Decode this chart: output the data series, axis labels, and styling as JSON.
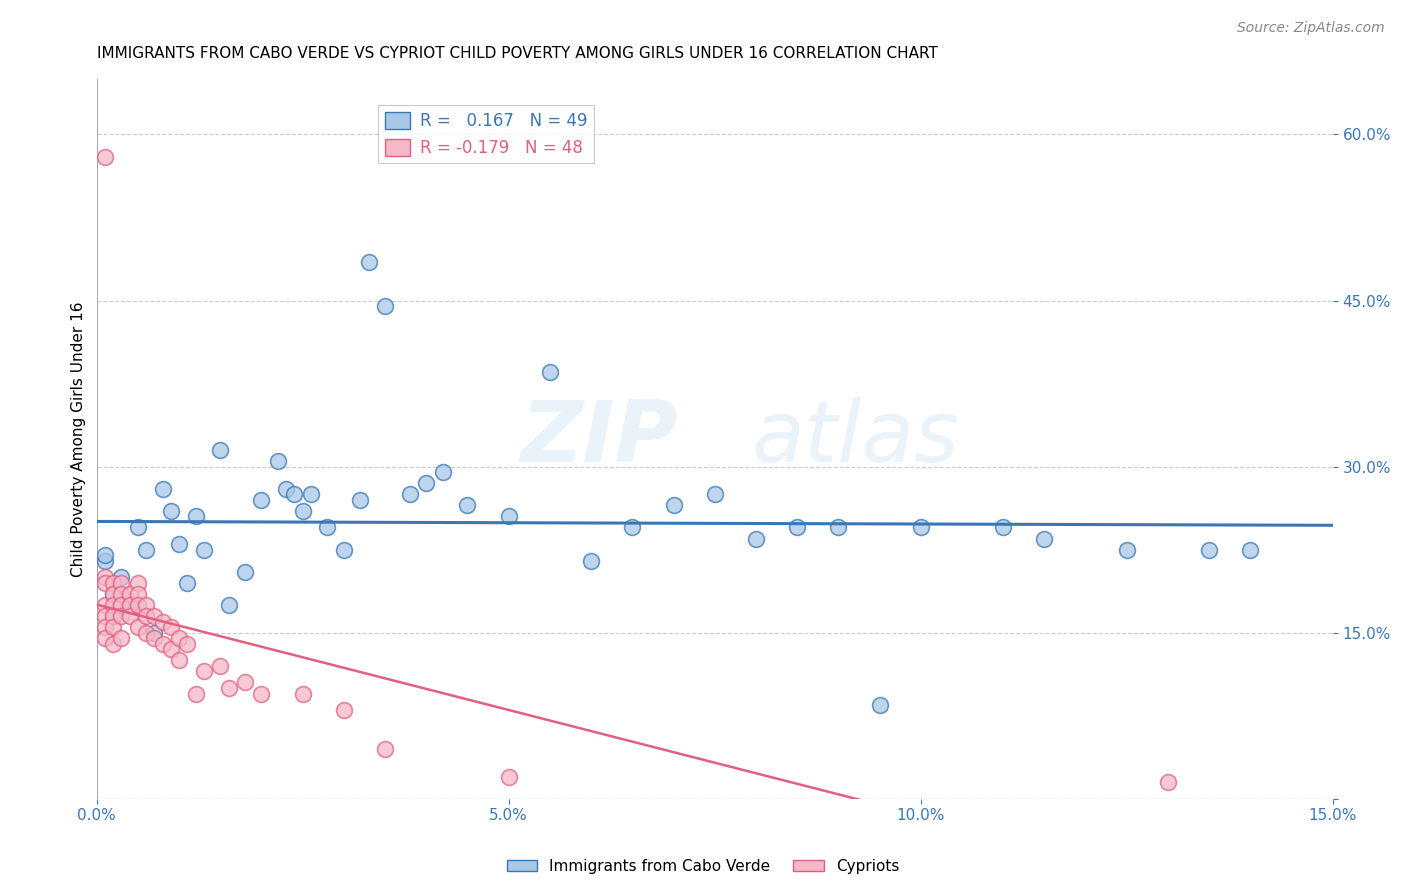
{
  "title": "IMMIGRANTS FROM CABO VERDE VS CYPRIOT CHILD POVERTY AMONG GIRLS UNDER 16 CORRELATION CHART",
  "source": "Source: ZipAtlas.com",
  "ylabel": "Child Poverty Among Girls Under 16",
  "xlim": [
    0.0,
    0.15
  ],
  "ylim": [
    0.0,
    0.65
  ],
  "yticks": [
    0.0,
    0.15,
    0.3,
    0.45,
    0.6
  ],
  "xticks": [
    0.0,
    0.05,
    0.1,
    0.15
  ],
  "blue_color": "#a8c8e8",
  "blue_line_color": "#3a78b5",
  "pink_color": "#f5b8c8",
  "pink_line_color": "#e06080",
  "watermark_zip": "ZIP",
  "watermark_atlas": "atlas",
  "legend_blue_label": "R =   0.167   N = 49",
  "legend_pink_label": "R = -0.179   N = 48",
  "legend_blue_r_color": "#3a78b5",
  "legend_pink_r_color": "#e06080",
  "blue_scatter_x": [
    0.001,
    0.001,
    0.002,
    0.002,
    0.003,
    0.004,
    0.005,
    0.006,
    0.007,
    0.008,
    0.009,
    0.01,
    0.011,
    0.012,
    0.013,
    0.015,
    0.016,
    0.018,
    0.02,
    0.022,
    0.023,
    0.024,
    0.025,
    0.026,
    0.028,
    0.03,
    0.032,
    0.033,
    0.035,
    0.038,
    0.04,
    0.042,
    0.045,
    0.05,
    0.055,
    0.06,
    0.065,
    0.07,
    0.075,
    0.08,
    0.085,
    0.09,
    0.095,
    0.1,
    0.11,
    0.115,
    0.125,
    0.135,
    0.14
  ],
  "blue_scatter_y": [
    0.215,
    0.22,
    0.185,
    0.165,
    0.2,
    0.175,
    0.245,
    0.225,
    0.15,
    0.28,
    0.26,
    0.23,
    0.195,
    0.255,
    0.225,
    0.315,
    0.175,
    0.205,
    0.27,
    0.305,
    0.28,
    0.275,
    0.26,
    0.275,
    0.245,
    0.225,
    0.27,
    0.485,
    0.445,
    0.275,
    0.285,
    0.295,
    0.265,
    0.255,
    0.385,
    0.215,
    0.245,
    0.265,
    0.275,
    0.235,
    0.245,
    0.245,
    0.085,
    0.245,
    0.245,
    0.235,
    0.225,
    0.225,
    0.225
  ],
  "pink_scatter_x": [
    0.001,
    0.001,
    0.001,
    0.001,
    0.001,
    0.001,
    0.001,
    0.002,
    0.002,
    0.002,
    0.002,
    0.002,
    0.002,
    0.003,
    0.003,
    0.003,
    0.003,
    0.003,
    0.004,
    0.004,
    0.004,
    0.005,
    0.005,
    0.005,
    0.005,
    0.006,
    0.006,
    0.006,
    0.007,
    0.007,
    0.008,
    0.008,
    0.009,
    0.009,
    0.01,
    0.01,
    0.011,
    0.012,
    0.013,
    0.015,
    0.016,
    0.018,
    0.02,
    0.025,
    0.03,
    0.035,
    0.05,
    0.13
  ],
  "pink_scatter_y": [
    0.58,
    0.2,
    0.195,
    0.175,
    0.165,
    0.155,
    0.145,
    0.195,
    0.185,
    0.175,
    0.165,
    0.155,
    0.14,
    0.195,
    0.185,
    0.175,
    0.165,
    0.145,
    0.185,
    0.175,
    0.165,
    0.195,
    0.185,
    0.175,
    0.155,
    0.175,
    0.165,
    0.15,
    0.165,
    0.145,
    0.16,
    0.14,
    0.155,
    0.135,
    0.145,
    0.125,
    0.14,
    0.095,
    0.115,
    0.12,
    0.1,
    0.105,
    0.095,
    0.095,
    0.08,
    0.045,
    0.02,
    0.015
  ],
  "grid_color": "#cccccc",
  "title_fontsize": 11,
  "axis_label_fontsize": 11,
  "tick_fontsize": 11,
  "source_fontsize": 10
}
